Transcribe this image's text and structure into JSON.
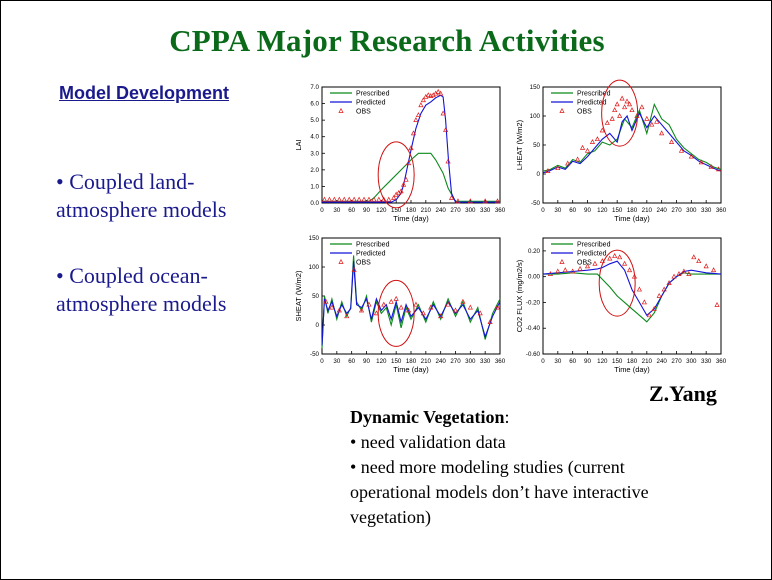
{
  "slide": {
    "title": "CPPA Major Research Activities",
    "subtitle": "Model Development",
    "bullets": [
      "• Coupled land-atmosphere models",
      "• Coupled ocean-atmosphere models"
    ],
    "credit": "Z.Yang",
    "notes": {
      "heading": "Dynamic Vegetation",
      "heading_suffix": ":",
      "items": [
        "• need validation data",
        "• need more modeling studies (current operational models don’t have interactive vegetation)"
      ]
    }
  },
  "colors": {
    "title": "#0a6a1a",
    "text": "#1a1a8c",
    "prescribed": "#0b8a1b",
    "predicted": "#1414d8",
    "obs": "#e01818",
    "circle": "#d01010"
  },
  "chart_data": [
    {
      "type": "line",
      "title": "",
      "xlabel": "Time (day)",
      "ylabel": "LAI",
      "xlim": [
        0,
        360
      ],
      "ylim": [
        0,
        7
      ],
      "xticks": [
        0,
        30,
        60,
        90,
        120,
        150,
        180,
        210,
        240,
        270,
        300,
        330,
        360
      ],
      "yticks": [
        0,
        1,
        2,
        3,
        4,
        5,
        6,
        7
      ],
      "ytick_labels": [
        "0.0",
        "1.0",
        "2.0",
        "3.0",
        "4.0",
        "5.0",
        "6.0",
        "7.0"
      ],
      "legend": [
        "Prescribed",
        "Predicted",
        "OBS"
      ],
      "highlight_circle": {
        "x": 150,
        "y": 1.7
      },
      "series": [
        {
          "name": "Prescribed",
          "x": [
            0,
            95,
            105,
            120,
            140,
            160,
            180,
            195,
            210,
            220,
            230,
            245,
            255,
            270,
            360
          ],
          "y": [
            0.1,
            0.1,
            0.3,
            0.8,
            1.4,
            2.0,
            2.6,
            3.0,
            3.0,
            3.0,
            2.6,
            1.8,
            0.9,
            0.1,
            0.1
          ]
        },
        {
          "name": "Predicted",
          "x": [
            0,
            140,
            150,
            160,
            165,
            170,
            180,
            190,
            200,
            210,
            220,
            230,
            240,
            245,
            250,
            256,
            262,
            270,
            360
          ],
          "y": [
            0.05,
            0.05,
            0.2,
            0.6,
            1.1,
            1.8,
            3.2,
            4.5,
            5.4,
            5.9,
            6.1,
            6.35,
            6.5,
            6.4,
            5.0,
            2.5,
            0.6,
            0.05,
            0.05
          ]
        },
        {
          "name": "OBS",
          "x": [
            5,
            15,
            25,
            35,
            45,
            55,
            65,
            75,
            85,
            95,
            105,
            115,
            125,
            135,
            145,
            150,
            155,
            160,
            165,
            170,
            175,
            180,
            185,
            190,
            195,
            200,
            205,
            210,
            215,
            220,
            225,
            230,
            235,
            240,
            245,
            250,
            255,
            262,
            275,
            300,
            330,
            355
          ],
          "y": [
            0.2,
            0.2,
            0.2,
            0.2,
            0.2,
            0.2,
            0.2,
            0.2,
            0.2,
            0.2,
            0.2,
            0.2,
            0.2,
            0.2,
            0.3,
            0.5,
            0.6,
            0.7,
            1.1,
            1.4,
            2.4,
            3.3,
            4.2,
            5.0,
            5.3,
            5.9,
            6.2,
            6.4,
            6.5,
            6.45,
            6.5,
            6.6,
            6.7,
            6.6,
            5.4,
            4.4,
            2.5,
            0.3,
            0.1,
            0.1,
            0.1,
            0.1
          ]
        }
      ]
    },
    {
      "type": "line",
      "title": "",
      "xlabel": "Time (day)",
      "ylabel": "LHEAT (W/m2)",
      "xlim": [
        0,
        360
      ],
      "ylim": [
        -50,
        150
      ],
      "xticks": [
        0,
        30,
        60,
        90,
        120,
        150,
        180,
        210,
        240,
        270,
        300,
        330,
        360
      ],
      "yticks": [
        -50,
        0,
        50,
        100,
        150
      ],
      "ytick_labels": [
        "-50",
        "0",
        "50",
        "100",
        "150"
      ],
      "legend": [
        "Prescribed",
        "Predicted",
        "OBS"
      ],
      "highlight_circle": {
        "x": 155,
        "y": 105
      },
      "series": [
        {
          "name": "Prescribed",
          "x": [
            0,
            15,
            30,
            45,
            60,
            75,
            90,
            105,
            120,
            135,
            150,
            165,
            180,
            195,
            210,
            225,
            240,
            255,
            270,
            285,
            300,
            315,
            330,
            345,
            360
          ],
          "y": [
            5,
            8,
            15,
            10,
            25,
            20,
            35,
            40,
            55,
            50,
            60,
            95,
            80,
            110,
            70,
            120,
            95,
            85,
            60,
            45,
            35,
            25,
            20,
            12,
            8
          ]
        },
        {
          "name": "Predicted",
          "x": [
            0,
            15,
            30,
            45,
            60,
            75,
            90,
            105,
            120,
            135,
            150,
            160,
            170,
            180,
            195,
            210,
            225,
            240,
            255,
            270,
            285,
            300,
            315,
            330,
            345,
            360
          ],
          "y": [
            2,
            6,
            12,
            8,
            22,
            18,
            30,
            45,
            60,
            70,
            55,
            90,
            100,
            75,
            105,
            80,
            100,
            85,
            70,
            55,
            40,
            32,
            22,
            16,
            10,
            5
          ]
        },
        {
          "name": "OBS",
          "x": [
            10,
            30,
            50,
            70,
            80,
            90,
            100,
            110,
            120,
            130,
            140,
            145,
            150,
            155,
            160,
            165,
            170,
            175,
            180,
            190,
            200,
            210,
            220,
            230,
            240,
            260,
            280,
            300,
            320,
            340,
            355
          ],
          "y": [
            5,
            10,
            18,
            25,
            45,
            40,
            55,
            60,
            75,
            88,
            95,
            110,
            120,
            100,
            130,
            115,
            125,
            120,
            110,
            100,
            115,
            95,
            85,
            90,
            70,
            55,
            40,
            30,
            20,
            12,
            8
          ]
        }
      ]
    },
    {
      "type": "line",
      "title": "",
      "xlabel": "Time (day)",
      "ylabel": "SHEAT (W/m2)",
      "xlim": [
        0,
        360
      ],
      "ylim": [
        -50,
        150
      ],
      "xticks": [
        0,
        30,
        60,
        90,
        120,
        150,
        180,
        210,
        240,
        270,
        300,
        330,
        360
      ],
      "yticks": [
        -50,
        0,
        50,
        100,
        150
      ],
      "ytick_labels": [
        "-50",
        "0",
        "50",
        "100",
        "150"
      ],
      "legend": [
        "Prescribed",
        "Predicted",
        "OBS"
      ],
      "highlight_circle": {
        "x": 150,
        "y": 20
      },
      "series": [
        {
          "name": "Prescribed",
          "x": [
            0,
            5,
            12,
            20,
            30,
            40,
            50,
            58,
            64,
            70,
            80,
            90,
            100,
            110,
            120,
            130,
            140,
            150,
            160,
            170,
            180,
            195,
            210,
            225,
            240,
            255,
            270,
            285,
            300,
            315,
            330,
            345,
            360
          ],
          "y": [
            -40,
            50,
            20,
            45,
            10,
            40,
            15,
            30,
            120,
            40,
            25,
            50,
            5,
            40,
            20,
            30,
            0,
            35,
            -5,
            30,
            10,
            35,
            5,
            40,
            10,
            45,
            15,
            40,
            5,
            30,
            -25,
            20,
            45
          ]
        },
        {
          "name": "Predicted",
          "x": [
            0,
            5,
            12,
            20,
            30,
            40,
            50,
            58,
            64,
            70,
            80,
            90,
            100,
            110,
            120,
            130,
            140,
            150,
            160,
            170,
            180,
            195,
            210,
            225,
            240,
            255,
            270,
            285,
            300,
            315,
            330,
            345,
            360
          ],
          "y": [
            -35,
            45,
            25,
            40,
            15,
            35,
            20,
            28,
            110,
            35,
            30,
            45,
            10,
            45,
            25,
            35,
            10,
            40,
            5,
            35,
            15,
            30,
            10,
            35,
            15,
            40,
            20,
            35,
            10,
            25,
            -20,
            15,
            40
          ]
        },
        {
          "name": "OBS",
          "x": [
            8,
            20,
            35,
            50,
            65,
            80,
            95,
            110,
            125,
            140,
            150,
            160,
            175,
            190,
            205,
            220,
            240,
            255,
            270,
            285,
            300,
            320,
            340,
            355
          ],
          "y": [
            40,
            30,
            25,
            15,
            95,
            25,
            35,
            20,
            35,
            40,
            45,
            30,
            25,
            35,
            20,
            30,
            15,
            35,
            25,
            40,
            30,
            20,
            5,
            30
          ]
        }
      ]
    },
    {
      "type": "line",
      "title": "",
      "xlabel": "Time (day)",
      "ylabel": "CO2 FLUX (mg/m2/s)",
      "xlim": [
        0,
        360
      ],
      "ylim": [
        -0.6,
        0.3
      ],
      "xticks": [
        0,
        30,
        60,
        90,
        120,
        150,
        180,
        210,
        240,
        270,
        300,
        330,
        360
      ],
      "yticks": [
        -0.6,
        -0.4,
        -0.2,
        0.0,
        0.2
      ],
      "ytick_labels": [
        "-0.60",
        "-0.40",
        "-0.20",
        "0.00",
        "0.20"
      ],
      "legend": [
        "Prescribed",
        "Predicted",
        "OBS"
      ],
      "highlight_circle": {
        "x": 150,
        "y": -0.05
      },
      "series": [
        {
          "name": "Prescribed",
          "x": [
            0,
            30,
            60,
            90,
            110,
            120,
            135,
            150,
            165,
            180,
            195,
            210,
            225,
            240,
            255,
            270,
            285,
            300,
            330,
            360
          ],
          "y": [
            0.02,
            0.02,
            0.03,
            0.02,
            0.02,
            -0.02,
            -0.08,
            -0.15,
            -0.2,
            -0.25,
            -0.3,
            -0.35,
            -0.28,
            -0.15,
            -0.05,
            0.0,
            0.03,
            0.02,
            0.02,
            0.02
          ]
        },
        {
          "name": "Predicted",
          "x": [
            0,
            30,
            60,
            90,
            110,
            120,
            135,
            150,
            165,
            180,
            195,
            210,
            225,
            240,
            255,
            270,
            285,
            300,
            330,
            360
          ],
          "y": [
            0.02,
            0.03,
            0.04,
            0.05,
            0.06,
            0.07,
            0.1,
            0.12,
            0.05,
            -0.1,
            -0.2,
            -0.3,
            -0.25,
            -0.15,
            -0.05,
            0.0,
            0.04,
            0.05,
            0.03,
            0.02
          ]
        },
        {
          "name": "OBS",
          "x": [
            15,
            30,
            45,
            60,
            75,
            90,
            105,
            120,
            135,
            145,
            155,
            165,
            175,
            185,
            195,
            205,
            215,
            225,
            235,
            245,
            255,
            265,
            275,
            285,
            295,
            305,
            315,
            330,
            345,
            352
          ],
          "y": [
            0.02,
            0.04,
            0.05,
            0.04,
            0.06,
            0.08,
            0.1,
            0.12,
            0.14,
            0.16,
            0.15,
            0.1,
            0.05,
            0.0,
            -0.1,
            -0.2,
            -0.3,
            -0.25,
            -0.15,
            -0.1,
            -0.05,
            0.0,
            0.02,
            0.04,
            0.02,
            0.15,
            0.12,
            0.08,
            0.05,
            -0.22
          ]
        }
      ]
    }
  ]
}
